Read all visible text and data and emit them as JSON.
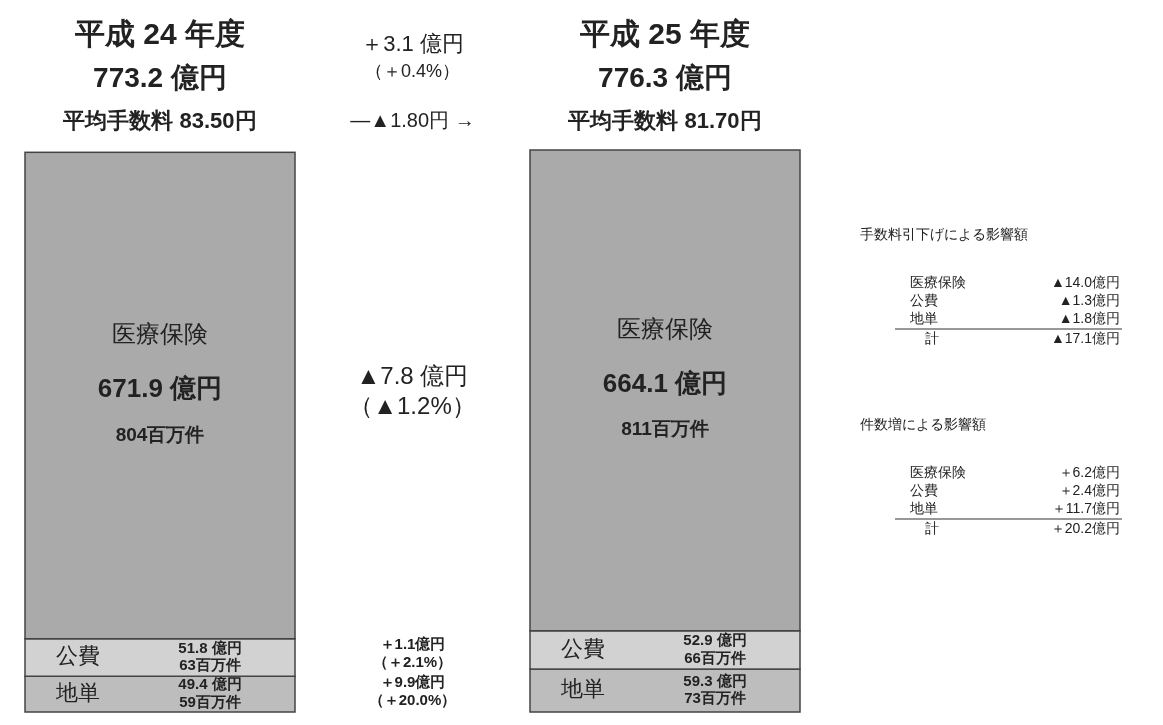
{
  "chart_data": {
    "type": "bar",
    "stacked": true,
    "categories": [
      "平成 24 年度",
      "平成 25 年度"
    ],
    "totals": [
      "773.2 億円",
      "776.3 億円"
    ],
    "series": [
      {
        "name": "地単",
        "color": "#bdbdbd",
        "values": [
          49.4,
          59.3
        ],
        "value_labels": [
          "49.4 億円\n59百万件",
          "59.3 億円\n73百万件"
        ]
      },
      {
        "name": "公費",
        "color": "#d2d2d2",
        "values": [
          51.8,
          52.9
        ],
        "value_labels": [
          "51.8 億円\n63百万件",
          "52.9 億円\n66百万件"
        ]
      },
      {
        "name": "医療保険",
        "color": "#aaaaaa",
        "values": [
          671.9,
          664.1
        ],
        "value_labels": [
          "671.9 億円\n804百万件",
          "664.1 億円\n811百万件"
        ]
      }
    ],
    "annotations": [
      "平均手数料 83.50円",
      "―▲1.80円 →",
      "平均手数料 81.70円",
      "＋3.1 億円",
      "（＋0.4%）",
      "▲7.8 億円",
      "（▲1.2%）",
      "＋1.1億円",
      "（＋2.1%）",
      "＋9.9億円",
      "（＋20.0%）",
      "手数料引下げによる影響額",
      "医療保険 ▲14.0億円",
      "公費 ▲1.3億円",
      "地単 ▲1.8億円",
      "計 ▲17.1億円",
      "件数増による影響額",
      "医療保険 ＋6.2億円",
      "公費 ＋2.4億円",
      "地単 ＋11.7億円",
      "計 ＋20.2億円"
    ]
  }
}
